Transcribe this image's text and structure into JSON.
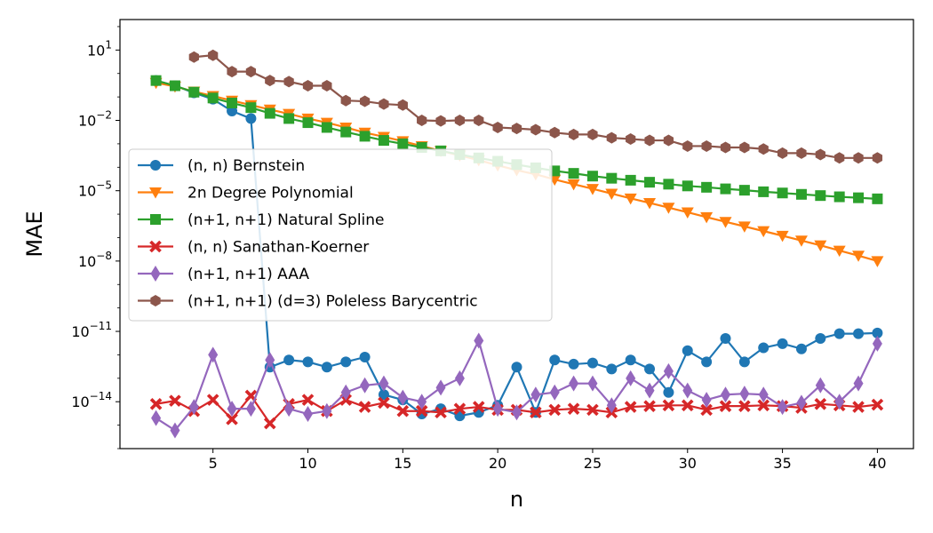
{
  "chart_data": {
    "type": "line",
    "xlabel": "n",
    "ylabel": "MAE",
    "yscale": "log",
    "xlim": [
      0.1,
      41.9
    ],
    "ylim": [
      1e-16,
      200
    ],
    "x_ticks": [
      5,
      10,
      15,
      20,
      25,
      30,
      35,
      40
    ],
    "y_ticks": [
      {
        "value": 10,
        "base": "10",
        "exp": "1"
      },
      {
        "value": 0.01,
        "base": "10",
        "exp": "−2"
      },
      {
        "value": 1e-05,
        "base": "10",
        "exp": "−5"
      },
      {
        "value": 1e-08,
        "base": "10",
        "exp": "−8"
      },
      {
        "value": 1e-11,
        "base": "10",
        "exp": "−11"
      },
      {
        "value": 1e-14,
        "base": "10",
        "exp": "−14"
      }
    ],
    "legend_position": "center-left",
    "series": [
      {
        "name": "(n, n) Bernstein",
        "color": "#1f77b4",
        "marker": "circle",
        "x": [
          2,
          3,
          4,
          5,
          6,
          7,
          8,
          9,
          10,
          11,
          12,
          13,
          14,
          15,
          16,
          17,
          18,
          19,
          20,
          21,
          22,
          23,
          24,
          25,
          26,
          27,
          28,
          29,
          30,
          31,
          32,
          33,
          34,
          35,
          36,
          37,
          38,
          39,
          40
        ],
        "y": [
          0.5,
          0.3,
          0.15,
          0.08,
          0.025,
          0.012,
          3e-13,
          6e-13,
          5e-13,
          3e-13,
          5e-13,
          8e-13,
          2e-14,
          1.2e-14,
          3e-15,
          5e-15,
          2.5e-15,
          3.5e-15,
          7e-15,
          3e-13,
          3.5e-15,
          6e-13,
          4e-13,
          4.5e-13,
          2.5e-13,
          6e-13,
          2.5e-13,
          2.5e-14,
          1.5e-12,
          5e-13,
          5e-12,
          5e-13,
          2e-12,
          3e-12,
          1.8e-12,
          5e-12,
          8e-12,
          8e-12,
          8.5e-12
        ]
      },
      {
        "name": "2n Degree Polynomial",
        "color": "#ff7f0e",
        "marker": "triangle-down",
        "x": [
          2,
          3,
          4,
          5,
          6,
          7,
          8,
          9,
          10,
          11,
          12,
          13,
          14,
          15,
          16,
          17,
          18,
          19,
          20,
          21,
          22,
          23,
          24,
          25,
          26,
          27,
          28,
          29,
          30,
          31,
          32,
          33,
          34,
          35,
          36,
          37,
          38,
          39,
          40
        ],
        "y": [
          0.4,
          0.28,
          0.17,
          0.11,
          0.07,
          0.045,
          0.029,
          0.019,
          0.012,
          0.008,
          0.005,
          0.003,
          0.002,
          0.0013,
          0.0008,
          0.0005,
          0.00032,
          0.0002,
          0.00012,
          7.5e-05,
          5e-05,
          3e-05,
          1.9e-05,
          1.2e-05,
          7.5e-06,
          4.7e-06,
          3e-06,
          1.9e-06,
          1.2e-06,
          7.5e-07,
          4.7e-07,
          3e-07,
          1.9e-07,
          1.2e-07,
          7.5e-08,
          4.7e-08,
          2.8e-08,
          1.7e-08,
          1e-08
        ]
      },
      {
        "name": "(n+1, n+1) Natural Spline",
        "color": "#2ca02c",
        "marker": "square",
        "x": [
          2,
          3,
          4,
          5,
          6,
          7,
          8,
          9,
          10,
          11,
          12,
          13,
          14,
          15,
          16,
          17,
          18,
          19,
          20,
          21,
          22,
          23,
          24,
          25,
          26,
          27,
          28,
          29,
          30,
          31,
          32,
          33,
          34,
          35,
          36,
          37,
          38,
          39,
          40
        ],
        "y": [
          0.5,
          0.3,
          0.16,
          0.09,
          0.055,
          0.035,
          0.02,
          0.012,
          0.008,
          0.005,
          0.0032,
          0.0021,
          0.0014,
          0.001,
          0.0007,
          0.0005,
          0.00035,
          0.00025,
          0.00018,
          0.00013,
          9.5e-05,
          7e-05,
          5.5e-05,
          4.2e-05,
          3.4e-05,
          2.8e-05,
          2.3e-05,
          1.9e-05,
          1.6e-05,
          1.4e-05,
          1.2e-05,
          1.05e-05,
          9e-06,
          8e-06,
          7e-06,
          6.2e-06,
          5.5e-06,
          5e-06,
          4.5e-06
        ]
      },
      {
        "name": "(n, n) Sanathan-Koerner",
        "color": "#d62728",
        "marker": "x",
        "x": [
          2,
          3,
          4,
          5,
          6,
          7,
          8,
          9,
          10,
          11,
          12,
          13,
          14,
          15,
          16,
          17,
          18,
          19,
          20,
          21,
          22,
          23,
          24,
          25,
          26,
          27,
          28,
          29,
          30,
          31,
          32,
          33,
          34,
          35,
          36,
          37,
          38,
          39,
          40
        ],
        "y": [
          8e-15,
          1.1e-14,
          4e-15,
          1.2e-14,
          1.8e-15,
          1.8e-14,
          1.2e-15,
          8e-15,
          1.2e-14,
          4e-15,
          1.2e-14,
          6e-15,
          9e-15,
          4e-15,
          4e-15,
          3.5e-15,
          5e-15,
          6e-15,
          4.5e-15,
          4.5e-15,
          3.5e-15,
          4.5e-15,
          5e-15,
          4.5e-15,
          3.5e-15,
          6e-15,
          6.5e-15,
          7e-15,
          7e-15,
          4.5e-15,
          6.5e-15,
          6.5e-15,
          7e-15,
          6.5e-15,
          5.5e-15,
          8e-15,
          7e-15,
          6e-15,
          7.5e-15
        ]
      },
      {
        "name": "(n+1, n+1) AAA",
        "color": "#9467bd",
        "marker": "diamond",
        "x": [
          2,
          3,
          4,
          5,
          6,
          7,
          8,
          9,
          10,
          11,
          12,
          13,
          14,
          15,
          16,
          17,
          18,
          19,
          20,
          21,
          22,
          23,
          24,
          25,
          26,
          27,
          28,
          29,
          30,
          31,
          32,
          33,
          34,
          35,
          36,
          37,
          38,
          39,
          40
        ],
        "y": [
          2e-15,
          6e-16,
          6e-15,
          1e-12,
          5e-15,
          5e-15,
          6e-13,
          5e-15,
          3e-15,
          4e-15,
          2.5e-14,
          5e-14,
          6e-14,
          1.5e-14,
          1e-14,
          4e-14,
          1e-13,
          4e-12,
          5e-15,
          3.5e-15,
          2e-14,
          2.5e-14,
          6e-14,
          6e-14,
          7e-15,
          1e-13,
          3e-14,
          2e-13,
          3e-14,
          1.2e-14,
          2e-14,
          2.2e-14,
          2e-14,
          6e-15,
          9e-15,
          5e-14,
          1e-14,
          6e-14,
          3e-12
        ]
      },
      {
        "name": "(n+1, n+1) (d=3) Poleless Barycentric",
        "color": "#8c564b",
        "marker": "hexagon",
        "x": [
          4,
          5,
          6,
          7,
          8,
          9,
          10,
          11,
          12,
          13,
          14,
          15,
          16,
          17,
          18,
          19,
          20,
          21,
          22,
          23,
          24,
          25,
          26,
          27,
          28,
          29,
          30,
          31,
          32,
          33,
          34,
          35,
          36,
          37,
          38,
          39,
          40
        ],
        "y": [
          5,
          6,
          1.2,
          1.2,
          0.5,
          0.45,
          0.3,
          0.3,
          0.07,
          0.065,
          0.05,
          0.045,
          0.01,
          0.0095,
          0.01,
          0.01,
          0.005,
          0.0045,
          0.004,
          0.003,
          0.0025,
          0.0025,
          0.0018,
          0.0016,
          0.0014,
          0.0014,
          0.0008,
          0.0008,
          0.0007,
          0.0007,
          0.0006,
          0.0004,
          0.0004,
          0.00035,
          0.00025,
          0.00025,
          0.00025
        ]
      }
    ]
  }
}
